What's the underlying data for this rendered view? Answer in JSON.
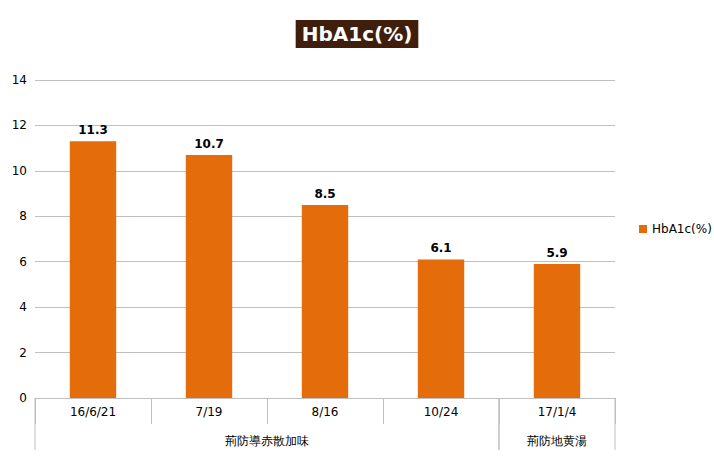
{
  "chart_data": {
    "type": "bar",
    "title": "HbA1c(%)",
    "categories": [
      "16/6/21",
      "7/19",
      "8/16",
      "10/24",
      "17/1/4"
    ],
    "series": [
      {
        "name": "HbA1c(%)",
        "color": "#e46c0a",
        "values": [
          11.3,
          10.7,
          8.5,
          6.1,
          5.9
        ]
      }
    ],
    "category_groups": [
      {
        "label": "荊防導赤散加味",
        "categories": [
          "16/6/21",
          "7/19",
          "8/16",
          "10/24"
        ]
      },
      {
        "label": "荊防地黄湯",
        "categories": [
          "17/1/4"
        ]
      }
    ],
    "ylim": [
      0,
      14
    ],
    "yticks": [
      0,
      2,
      4,
      6,
      8,
      10,
      12,
      14
    ],
    "grid": true,
    "data_labels": true,
    "legend": "right"
  }
}
